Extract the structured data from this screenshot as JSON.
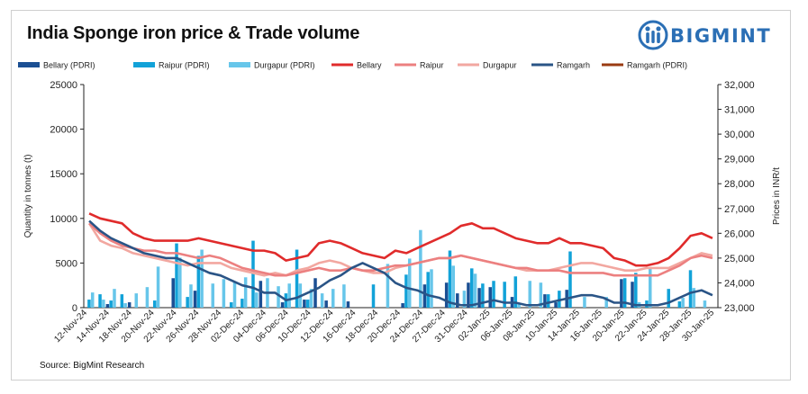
{
  "header": {
    "title": "India Sponge iron price & Trade volume"
  },
  "brand": {
    "name": "BIGMINT",
    "color": "#2b6fb5"
  },
  "footer": {
    "source": "Source: BigMint Research"
  },
  "colors": {
    "bellary_pdri": "#1b4f93",
    "raipur_pdri": "#12a2d8",
    "durgapur_pdri": "#67c6ea",
    "bellary": "#e02b2b",
    "raipur": "#ec8080",
    "durgapur": "#f2a7a0",
    "ramgarh": "#2a5486",
    "ramgarh_pdri": "#9a3b12"
  },
  "chart_data": {
    "type": "bar",
    "title": "India Sponge iron price & Trade volume",
    "y_left_label": "Quantity in tonnes (t)",
    "y_right_label": "Prices in INR/t",
    "y_left_lim": [
      0,
      25000
    ],
    "y_left_ticks": [
      "0",
      "5000",
      "10000",
      "15000",
      "20000",
      "25000"
    ],
    "y_right_lim": [
      23000,
      32000
    ],
    "y_right_ticks": [
      "23,000",
      "24,000",
      "25,000",
      "26,000",
      "27,000",
      "28,000",
      "29,000",
      "30,000",
      "31,000",
      "32,000"
    ],
    "grid": false,
    "legend_position": "top",
    "x_labels": [
      "12-Nov-24",
      "14-Nov-24",
      "18-Nov-24",
      "20-Nov-24",
      "22-Nov-24",
      "26-Nov-24",
      "28-Nov-24",
      "02-Dec-24",
      "04-Dec-24",
      "06-Dec-24",
      "10-Dec-24",
      "12-Dec-24",
      "16-Dec-24",
      "18-Dec-24",
      "20-Dec-24",
      "24-Dec-24",
      "27-Dec-24",
      "31-Dec-24",
      "02-Jan-25",
      "06-Jan-25",
      "08-Jan-25",
      "10-Jan-25",
      "14-Jan-25",
      "16-Jan-25",
      "20-Jan-25",
      "22-Jan-25",
      "24-Jan-25",
      "28-Jan-25",
      "30-Jan-25"
    ],
    "n_points": 58,
    "bar_series": [
      {
        "name": "Bellary (PDRI)",
        "values": [
          0,
          0,
          400,
          0,
          600,
          0,
          0,
          0,
          3300,
          0,
          1900,
          0,
          0,
          0,
          0,
          0,
          3000,
          0,
          600,
          0,
          900,
          3300,
          800,
          0,
          700,
          0,
          0,
          0,
          0,
          500,
          0,
          2600,
          0,
          2800,
          1600,
          2800,
          2200,
          2300,
          0,
          1200,
          0,
          0,
          1500,
          600,
          2000,
          0,
          0,
          0,
          0,
          3200,
          2900,
          0,
          0,
          0,
          0,
          0,
          0,
          0
        ]
      },
      {
        "name": "Raipur (PDRI)",
        "values": [
          900,
          1500,
          800,
          1500,
          0,
          0,
          800,
          0,
          7200,
          1200,
          5800,
          0,
          0,
          600,
          1000,
          7500,
          0,
          0,
          1600,
          6500,
          900,
          0,
          0,
          0,
          0,
          0,
          2600,
          0,
          0,
          3700,
          0,
          4000,
          0,
          6400,
          0,
          4400,
          2700,
          3000,
          2900,
          3500,
          0,
          0,
          1500,
          1900,
          6300,
          0,
          0,
          0,
          0,
          3300,
          3900,
          800,
          0,
          2100,
          700,
          4200,
          0,
          0
        ]
      },
      {
        "name": "Durgapur (PDRI)",
        "values": [
          1700,
          900,
          2100,
          500,
          1600,
          2300,
          4600,
          0,
          5600,
          2600,
          6500,
          2700,
          3200,
          2900,
          3400,
          1700,
          3300,
          2400,
          2700,
          2700,
          2100,
          1600,
          2100,
          2600,
          0,
          0,
          0,
          4900,
          0,
          5500,
          8700,
          4300,
          0,
          4700,
          1900,
          3800,
          0,
          0,
          0,
          500,
          3000,
          2800,
          0,
          0,
          0,
          1200,
          0,
          1200,
          0,
          0,
          600,
          4500,
          0,
          0,
          1100,
          2200,
          800,
          0
        ]
      }
    ],
    "line_series": [
      {
        "name": "Bellary",
        "values": [
          26800,
          26600,
          26500,
          26400,
          26000,
          25800,
          25700,
          25700,
          25700,
          25700,
          25800,
          25700,
          25600,
          25500,
          25400,
          25300,
          25300,
          25200,
          24900,
          25000,
          25100,
          25600,
          25700,
          25600,
          25400,
          25200,
          25100,
          25000,
          25300,
          25200,
          25400,
          25600,
          25800,
          26000,
          26300,
          26400,
          26200,
          26200,
          26000,
          25800,
          25700,
          25600,
          25600,
          25800,
          25600,
          25600,
          25500,
          25400,
          25000,
          24900,
          24700,
          24700,
          24800,
          25000,
          25400,
          25900,
          26000,
          25800
        ]
      },
      {
        "name": "Raipur",
        "values": [
          26400,
          26000,
          25700,
          25500,
          25400,
          25300,
          25300,
          25200,
          25200,
          25100,
          25000,
          25100,
          25000,
          24800,
          24600,
          24500,
          24400,
          24300,
          24300,
          24400,
          24500,
          24600,
          24500,
          24500,
          24600,
          24500,
          24500,
          24600,
          24700,
          24700,
          24800,
          24900,
          25000,
          25000,
          25100,
          25000,
          24900,
          24800,
          24700,
          24600,
          24600,
          24500,
          24500,
          24500,
          24400,
          24400,
          24400,
          24400,
          24300,
          24300,
          24300,
          24300,
          24300,
          24500,
          24700,
          25000,
          25100,
          25000
        ]
      },
      {
        "name": "Durgapur",
        "values": [
          26400,
          25700,
          25500,
          25400,
          25200,
          25100,
          25000,
          24900,
          24800,
          24700,
          24800,
          24800,
          24800,
          24600,
          24500,
          24400,
          24300,
          24400,
          24300,
          24500,
          24600,
          24800,
          24900,
          24800,
          24600,
          24500,
          24400,
          24400,
          24600,
          24700,
          24800,
          24900,
          25000,
          25000,
          25100,
          25000,
          24900,
          24800,
          24700,
          24600,
          24500,
          24500,
          24500,
          24600,
          24700,
          24800,
          24800,
          24700,
          24600,
          24500,
          24500,
          24600,
          24600,
          24600,
          24800,
          25000,
          25200,
          25100
        ]
      },
      {
        "name": "Ramgarh",
        "values": [
          26500,
          26100,
          25800,
          25600,
          25400,
          25200,
          25100,
          25000,
          25000,
          24800,
          24600,
          24400,
          24300,
          24100,
          23900,
          23800,
          23600,
          23600,
          23300,
          23400,
          23600,
          23800,
          24100,
          24300,
          24600,
          24800,
          24600,
          24400,
          24000,
          23800,
          23700,
          23500,
          23400,
          23200,
          23100,
          23100,
          23200,
          23300,
          23200,
          23200,
          23100,
          23100,
          23200,
          23300,
          23400,
          23500,
          23500,
          23400,
          23200,
          23200,
          23100,
          23100,
          23100,
          23200,
          23400,
          23600,
          23700,
          23500
        ]
      },
      {
        "name": "Ramgarh (PDRI)",
        "values": []
      }
    ]
  }
}
